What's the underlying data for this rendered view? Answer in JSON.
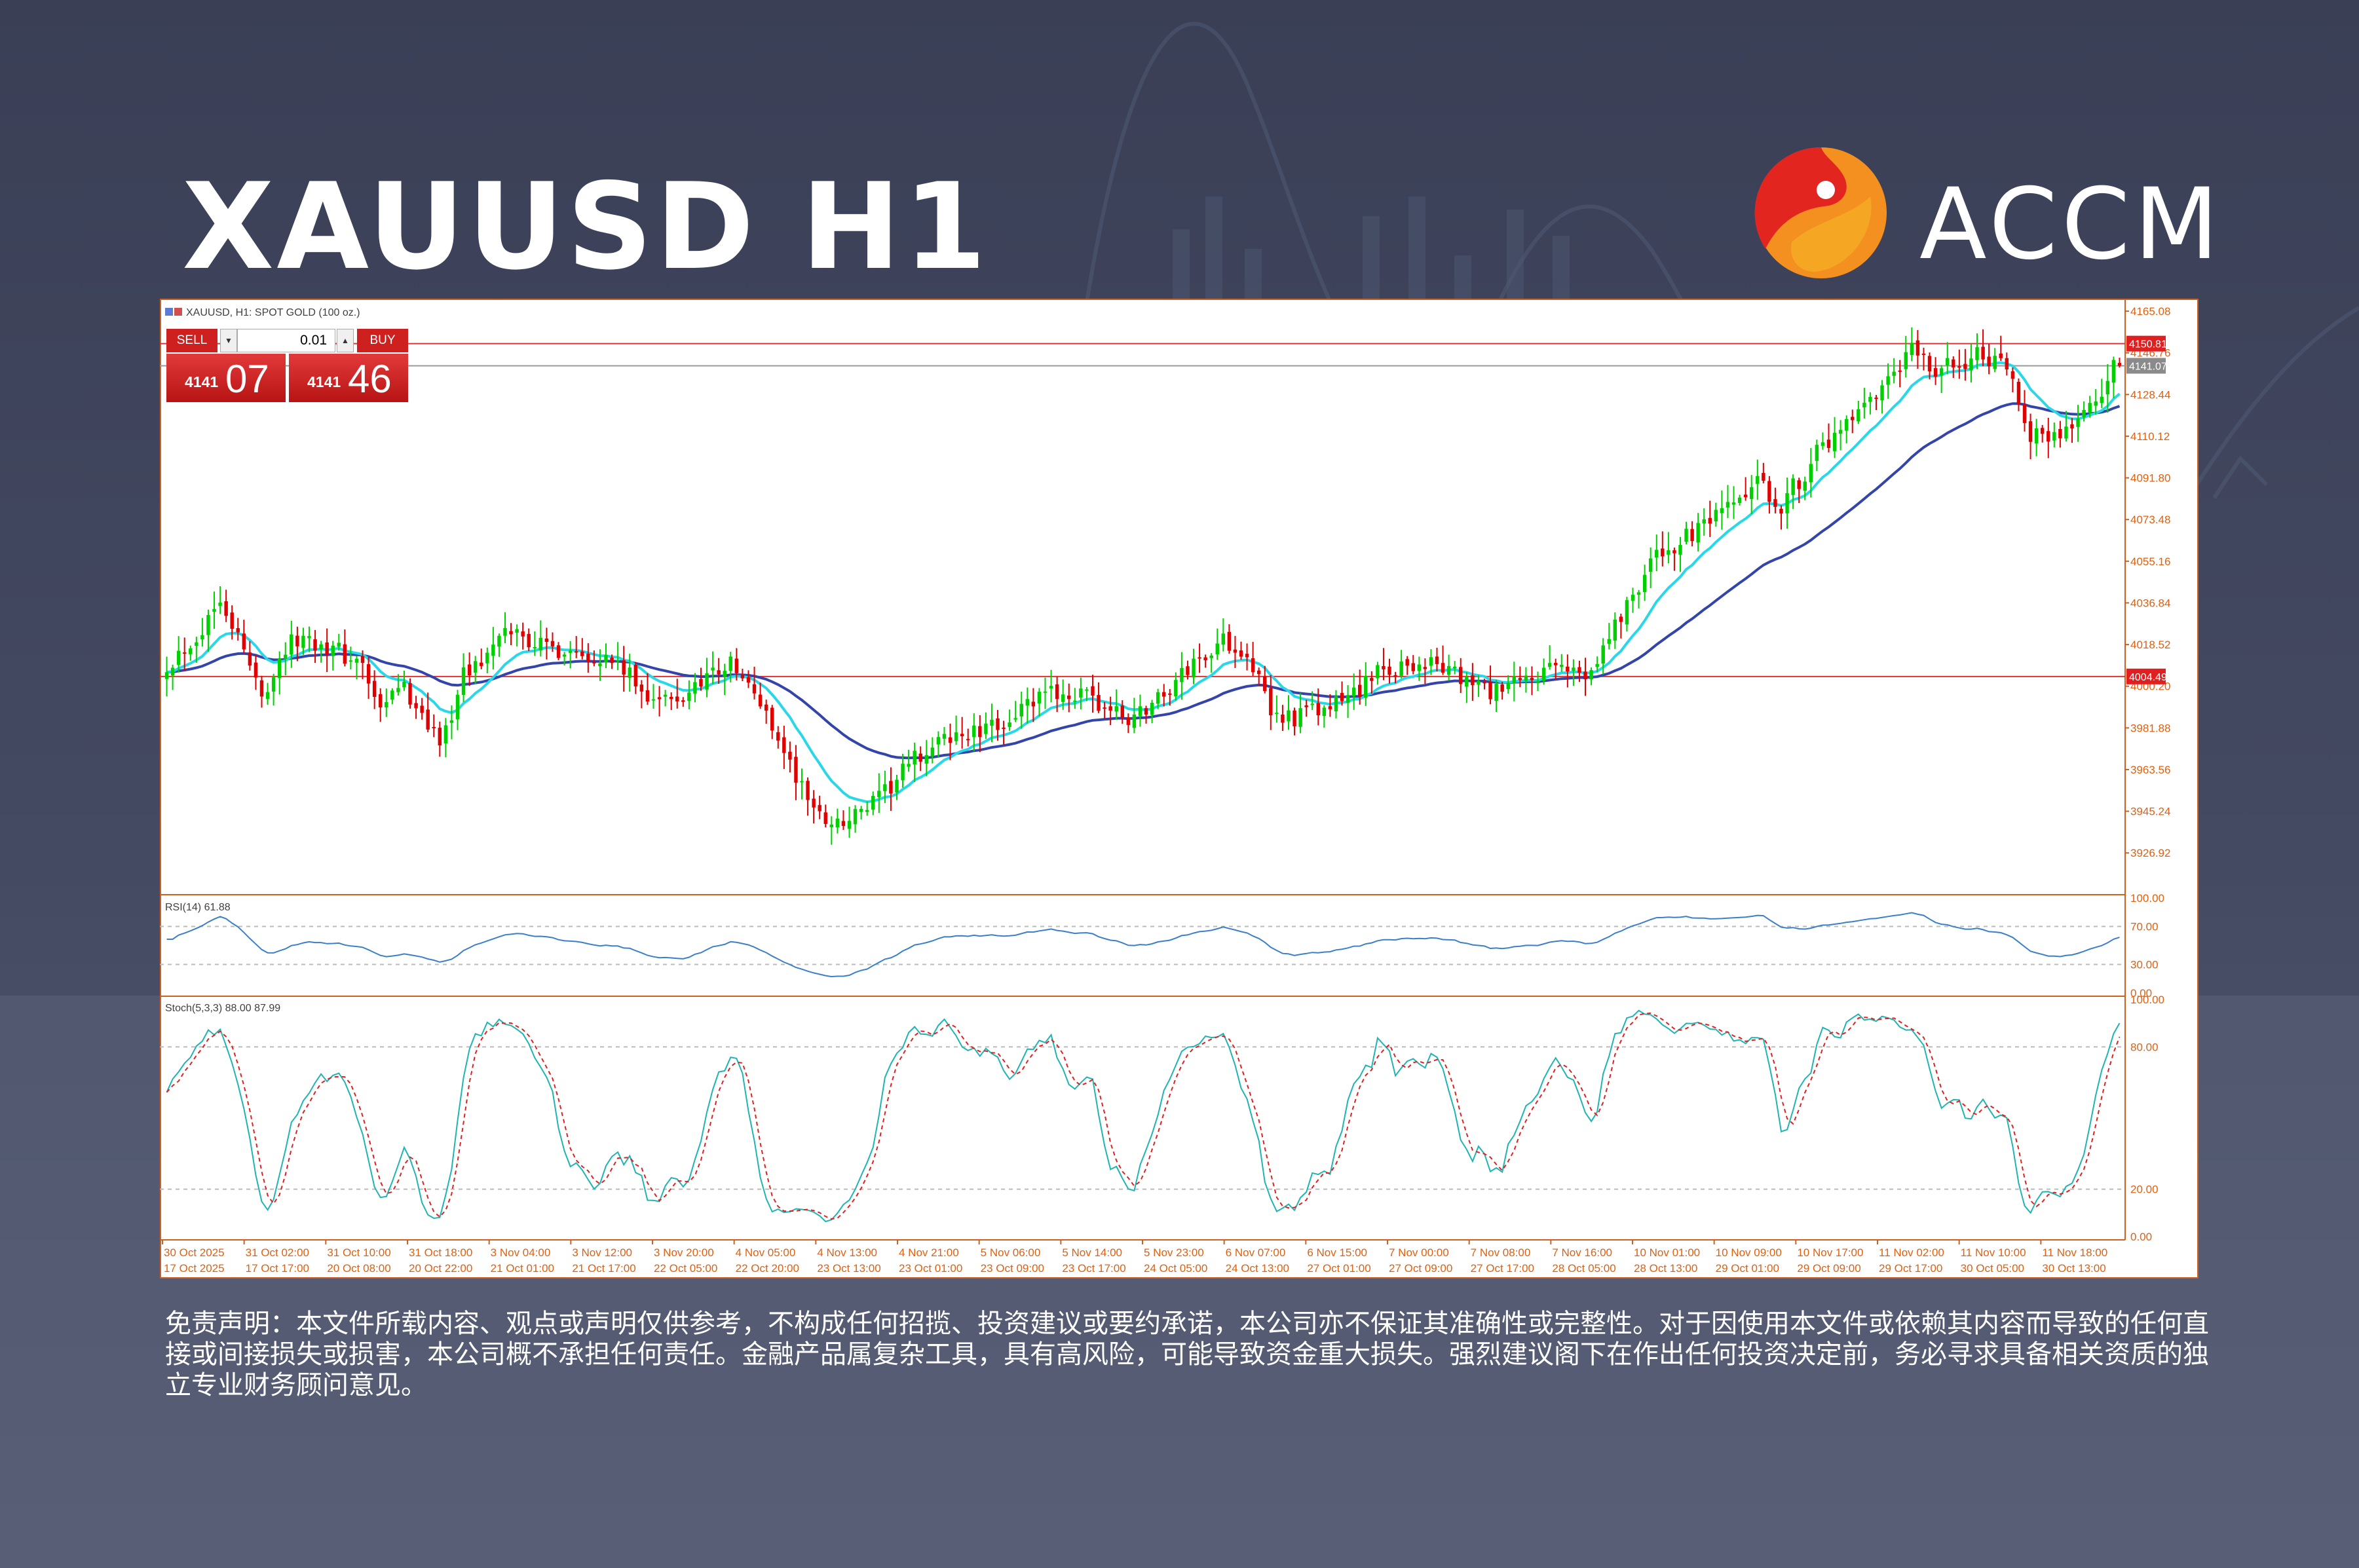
{
  "page": {
    "title": "XAUUSD H1",
    "brand": "ACCM"
  },
  "trade_panel": {
    "sell_label": "SELL",
    "buy_label": "BUY",
    "lot": "0.01",
    "sell_small": "4141",
    "sell_big": "07",
    "buy_small": "4141",
    "buy_big": "46"
  },
  "disclaimer": "免责声明：本文件所载内容、观点或声明仅供参考，不构成任何招揽、投资建议或要约承诺，本公司亦不保证其准确性或完整性。对于因使用本文件或依赖其内容而导致的任何直接或间接损失或损害，本公司概不承担任何责任。金融产品属复杂工具，具有高风险，可能导致资金重大损失。强烈建议阁下在作出任何投资决定前，务必寻求具备相关资质的独立专业财务顾问意见。",
  "colors": {
    "bull": "#00d000",
    "bear": "#e00000",
    "ma_fast": "#29d7e8",
    "ma_slow": "#3344aa",
    "level_line": "#e03030",
    "axis_text": "#e06010",
    "rsi": "#3a7fc8",
    "stoch_main": "#20b3b3",
    "stoch_signal": "#e02020"
  },
  "chart_data": {
    "type": "candlestick",
    "symbol_label": "XAUUSD, H1:  SPOT GOLD (100 oz.)",
    "ylim": [
      3910,
      4170
    ],
    "y_ticks": [
      "4165.08",
      "4146.76",
      "4128.44",
      "4110.12",
      "4091.80",
      "4073.48",
      "4055.16",
      "4036.84",
      "4018.52",
      "4000.20",
      "3981.88",
      "3963.56",
      "3945.24",
      "3926.92"
    ],
    "price_labels": {
      "resistance": "4150.81",
      "bid": "4141.07",
      "support": "4004.49"
    },
    "levels": {
      "resistance": 4150.81,
      "bid": 4141.07,
      "support": 4004.49
    },
    "x_labels": [
      "30 Oct 2025",
      "31 Oct 02:00",
      "31 Oct 10:00",
      "31 Oct 18:00",
      "3 Nov 04:00",
      "3 Nov 12:00",
      "3 Nov 20:00",
      "4 Nov 05:00",
      "4 Nov 13:00",
      "4 Nov 21:00",
      "5 Nov 06:00",
      "5 Nov 14:00",
      "5 Nov 23:00",
      "6 Nov 07:00",
      "6 Nov 15:00",
      "7 Nov 00:00",
      "7 Nov 08:00",
      "7 Nov 16:00",
      "10 Nov 01:00",
      "10 Nov 09:00",
      "10 Nov 17:00",
      "11 Nov 02:00",
      "11 Nov 10:00",
      "11 Nov 18:00"
    ],
    "x_labels_2": [
      "17 Oct 2025",
      "17 Oct 17:00",
      "20 Oct 08:00",
      "20 Oct 22:00",
      "21 Oct 01:00",
      "21 Oct 17:00",
      "22 Oct 05:00",
      "22 Oct 20:00",
      "23 Oct 13:00",
      "23 Oct 01:00",
      "23 Oct 09:00",
      "23 Oct 17:00",
      "24 Oct 05:00",
      "24 Oct 13:00",
      "27 Oct 01:00",
      "27 Oct 09:00",
      "27 Oct 17:00",
      "28 Oct 05:00",
      "28 Oct 13:00",
      "29 Oct 01:00",
      "29 Oct 09:00",
      "29 Oct 17:00",
      "30 Oct 05:00",
      "30 Oct 13:00"
    ],
    "close_path": [
      [
        0,
        4010
      ],
      [
        6,
        4025
      ],
      [
        9,
        4041
      ],
      [
        12,
        4022
      ],
      [
        16,
        3996
      ],
      [
        20,
        4017
      ],
      [
        23,
        4022
      ],
      [
        27,
        4018
      ],
      [
        33,
        4009
      ],
      [
        36,
        3987
      ],
      [
        39,
        4001
      ],
      [
        43,
        3990
      ],
      [
        46,
        3974
      ],
      [
        50,
        4005
      ],
      [
        54,
        4014
      ],
      [
        58,
        4025
      ],
      [
        64,
        4017
      ],
      [
        70,
        4016
      ],
      [
        76,
        4010
      ],
      [
        80,
        3998
      ],
      [
        86,
        3992
      ],
      [
        90,
        4004
      ],
      [
        95,
        4010
      ],
      [
        101,
        3989
      ],
      [
        106,
        3960
      ],
      [
        110,
        3943
      ],
      [
        114,
        3940
      ],
      [
        120,
        3950
      ],
      [
        126,
        3968
      ],
      [
        132,
        3978
      ],
      [
        138,
        3980
      ],
      [
        144,
        3990
      ],
      [
        150,
        3998
      ],
      [
        156,
        3994
      ],
      [
        162,
        3985
      ],
      [
        168,
        3997
      ],
      [
        174,
        4013
      ],
      [
        178,
        4020
      ],
      [
        182,
        4016
      ],
      [
        186,
        3988
      ],
      [
        190,
        3987
      ],
      [
        196,
        3990
      ],
      [
        200,
        3998
      ],
      [
        205,
        4007
      ],
      [
        210,
        4010
      ],
      [
        214,
        4010
      ],
      [
        218,
        4003
      ],
      [
        224,
        3997
      ],
      [
        230,
        4004
      ],
      [
        235,
        4008
      ],
      [
        239,
        4006
      ],
      [
        242,
        4018
      ],
      [
        246,
        4036
      ],
      [
        250,
        4055
      ],
      [
        256,
        4065
      ],
      [
        262,
        4075
      ],
      [
        268,
        4089
      ],
      [
        272,
        4080
      ],
      [
        278,
        4102
      ],
      [
        284,
        4116
      ],
      [
        290,
        4132
      ],
      [
        294,
        4148
      ],
      [
        298,
        4138
      ],
      [
        302,
        4143
      ],
      [
        306,
        4146
      ],
      [
        310,
        4138
      ],
      [
        314,
        4112
      ],
      [
        318,
        4110
      ],
      [
        322,
        4118
      ],
      [
        326,
        4128
      ],
      [
        328,
        4141
      ]
    ],
    "n_bars": 330,
    "rsi": {
      "label": "RSI(14) 61.88",
      "ticks": [
        "100.00",
        "70.00",
        "30.00",
        "0.00"
      ],
      "levels": [
        70,
        30
      ]
    },
    "stochastic": {
      "label": "Stoch(5,3,3) 88.00 87.99",
      "ticks": [
        "100.00",
        "80.00",
        "20.00",
        "0.00"
      ],
      "levels": [
        80,
        20
      ]
    }
  }
}
